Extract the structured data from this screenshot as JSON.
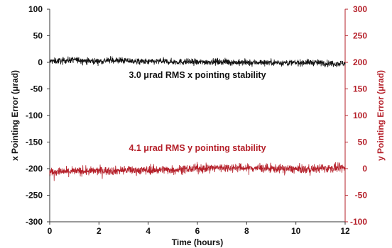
{
  "chart_data": {
    "type": "line",
    "title": "",
    "xlabel": "Time (hours)",
    "xlim": [
      0,
      12
    ],
    "x_ticks": [
      "0",
      "2",
      "4",
      "6",
      "8",
      "10",
      "12"
    ],
    "y_left": {
      "label": "x Pointing Error (μrad)",
      "lim": [
        -300,
        100
      ],
      "ticks": [
        "100",
        "50",
        "0",
        "-50",
        "-100",
        "-150",
        "-200",
        "-250",
        "-300"
      ],
      "color": "#111111"
    },
    "y_right": {
      "label": "y Pointing Error (μrad)",
      "lim": [
        -100,
        300
      ],
      "ticks": [
        "300",
        "250",
        "200",
        "150",
        "100",
        "50",
        "0",
        "-50",
        "-100"
      ],
      "color": "#b5202a"
    },
    "series": [
      {
        "axis": "left",
        "color": "#111111",
        "x": [
          0,
          0.5,
          1,
          1.5,
          2,
          2.5,
          3,
          3.5,
          4,
          4.5,
          5,
          5.5,
          6,
          6.5,
          7,
          7.5,
          8,
          8.5,
          9,
          9.5,
          10,
          10.5,
          11,
          11.5,
          12
        ],
        "y": [
          2,
          3,
          5,
          3,
          2,
          4,
          3,
          2,
          1,
          2,
          1,
          1,
          0,
          1,
          1,
          0,
          -1,
          0,
          0,
          -1,
          -1,
          0,
          -1,
          -2,
          -2
        ],
        "rms": 3.0
      },
      {
        "axis": "right",
        "color": "#b5202a",
        "x": [
          0,
          0.5,
          1,
          1.5,
          2,
          2.5,
          3,
          3.5,
          4,
          4.5,
          5,
          5.5,
          6,
          6.5,
          7,
          7.5,
          8,
          8.5,
          9,
          9.5,
          10,
          10.5,
          11,
          11.5,
          12
        ],
        "y": [
          -6,
          -6,
          -5,
          -5,
          -4,
          -4,
          -3,
          -3,
          -3,
          -2,
          -2,
          -1,
          0,
          1,
          2,
          2,
          1,
          1,
          0,
          0,
          -1,
          -1,
          0,
          1,
          1
        ],
        "rms": 4.1
      }
    ],
    "annotations": [
      {
        "text": "3.0 μrad RMS x pointing stability",
        "color": "#111111"
      },
      {
        "text": "4.1 μrad RMS y pointing stability",
        "color": "#b5202a"
      }
    ]
  }
}
